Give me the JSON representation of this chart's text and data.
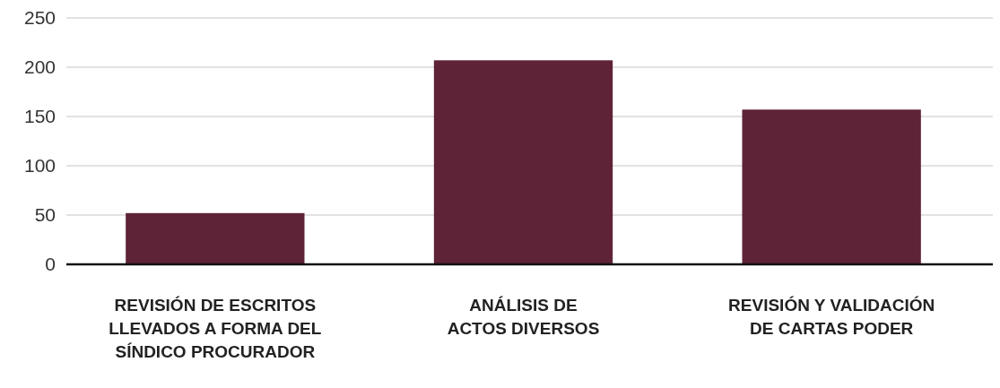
{
  "chart_data": {
    "type": "bar",
    "categories": [
      "REVISIÓN DE ESCRITOS\nLLEVADOS A FORMA DEL\nSÍNDICO PROCURADOR",
      "ANÁLISIS DE\nACTOS DIVERSOS",
      "REVISIÓN Y VALIDACIÓN\nDE CARTAS PODER"
    ],
    "values": [
      52,
      207,
      157
    ],
    "color": "#5e2337",
    "ylim": [
      0,
      250
    ],
    "yticks": [
      0,
      50,
      100,
      150,
      200,
      250
    ],
    "grid": "y"
  }
}
